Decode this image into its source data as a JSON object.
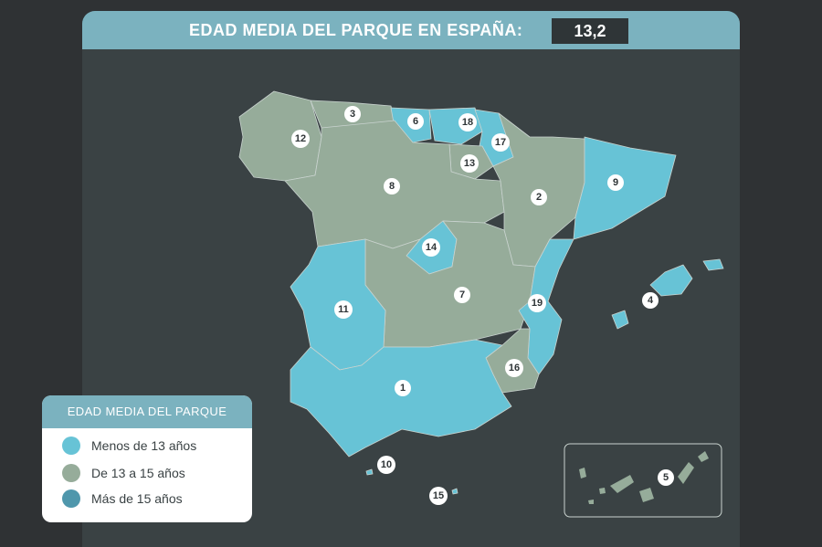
{
  "header": {
    "title": "EDAD MEDIA DEL PARQUE EN ESPAÑA:",
    "value": "13,2"
  },
  "colors": {
    "menos_13": "#67c3d6",
    "de_13_a_15": "#96ac9a",
    "mas_15": "#4f97ac",
    "panel": "#3a4244",
    "header": "#7bb2bf"
  },
  "legend": {
    "title": "EDAD MEDIA DEL PARQUE",
    "items": [
      {
        "label": "Menos de 13 años",
        "color": "#67c3d6"
      },
      {
        "label": "De 13 a 15 años",
        "color": "#96ac9a"
      },
      {
        "label": "Más de 15 años",
        "color": "#4f97ac"
      }
    ]
  },
  "regions": [
    {
      "number": "1",
      "category": "Menos de 13 años"
    },
    {
      "number": "2",
      "category": "De 13 a 15 años"
    },
    {
      "number": "3",
      "category": "De 13 a 15 años"
    },
    {
      "number": "4",
      "category": "Menos de 13 años"
    },
    {
      "number": "5",
      "category": "De 13 a 15 años"
    },
    {
      "number": "6",
      "category": "Menos de 13 años"
    },
    {
      "number": "7",
      "category": "De 13 a 15 años"
    },
    {
      "number": "8",
      "category": "De 13 a 15 años"
    },
    {
      "number": "9",
      "category": "Menos de 13 años"
    },
    {
      "number": "10",
      "category": "Menos de 13 años"
    },
    {
      "number": "11",
      "category": "Menos de 13 años"
    },
    {
      "number": "12",
      "category": "De 13 a 15 años"
    },
    {
      "number": "13",
      "category": "De 13 a 15 años"
    },
    {
      "number": "14",
      "category": "Menos de 13 años"
    },
    {
      "number": "15",
      "category": "Menos de 13 años"
    },
    {
      "number": "16",
      "category": "De 13 a 15 años"
    },
    {
      "number": "17",
      "category": "De 13 a 15 años"
    },
    {
      "number": "18",
      "category": "Menos de 13 años"
    },
    {
      "number": "19",
      "category": "Menos de 13 años"
    }
  ]
}
